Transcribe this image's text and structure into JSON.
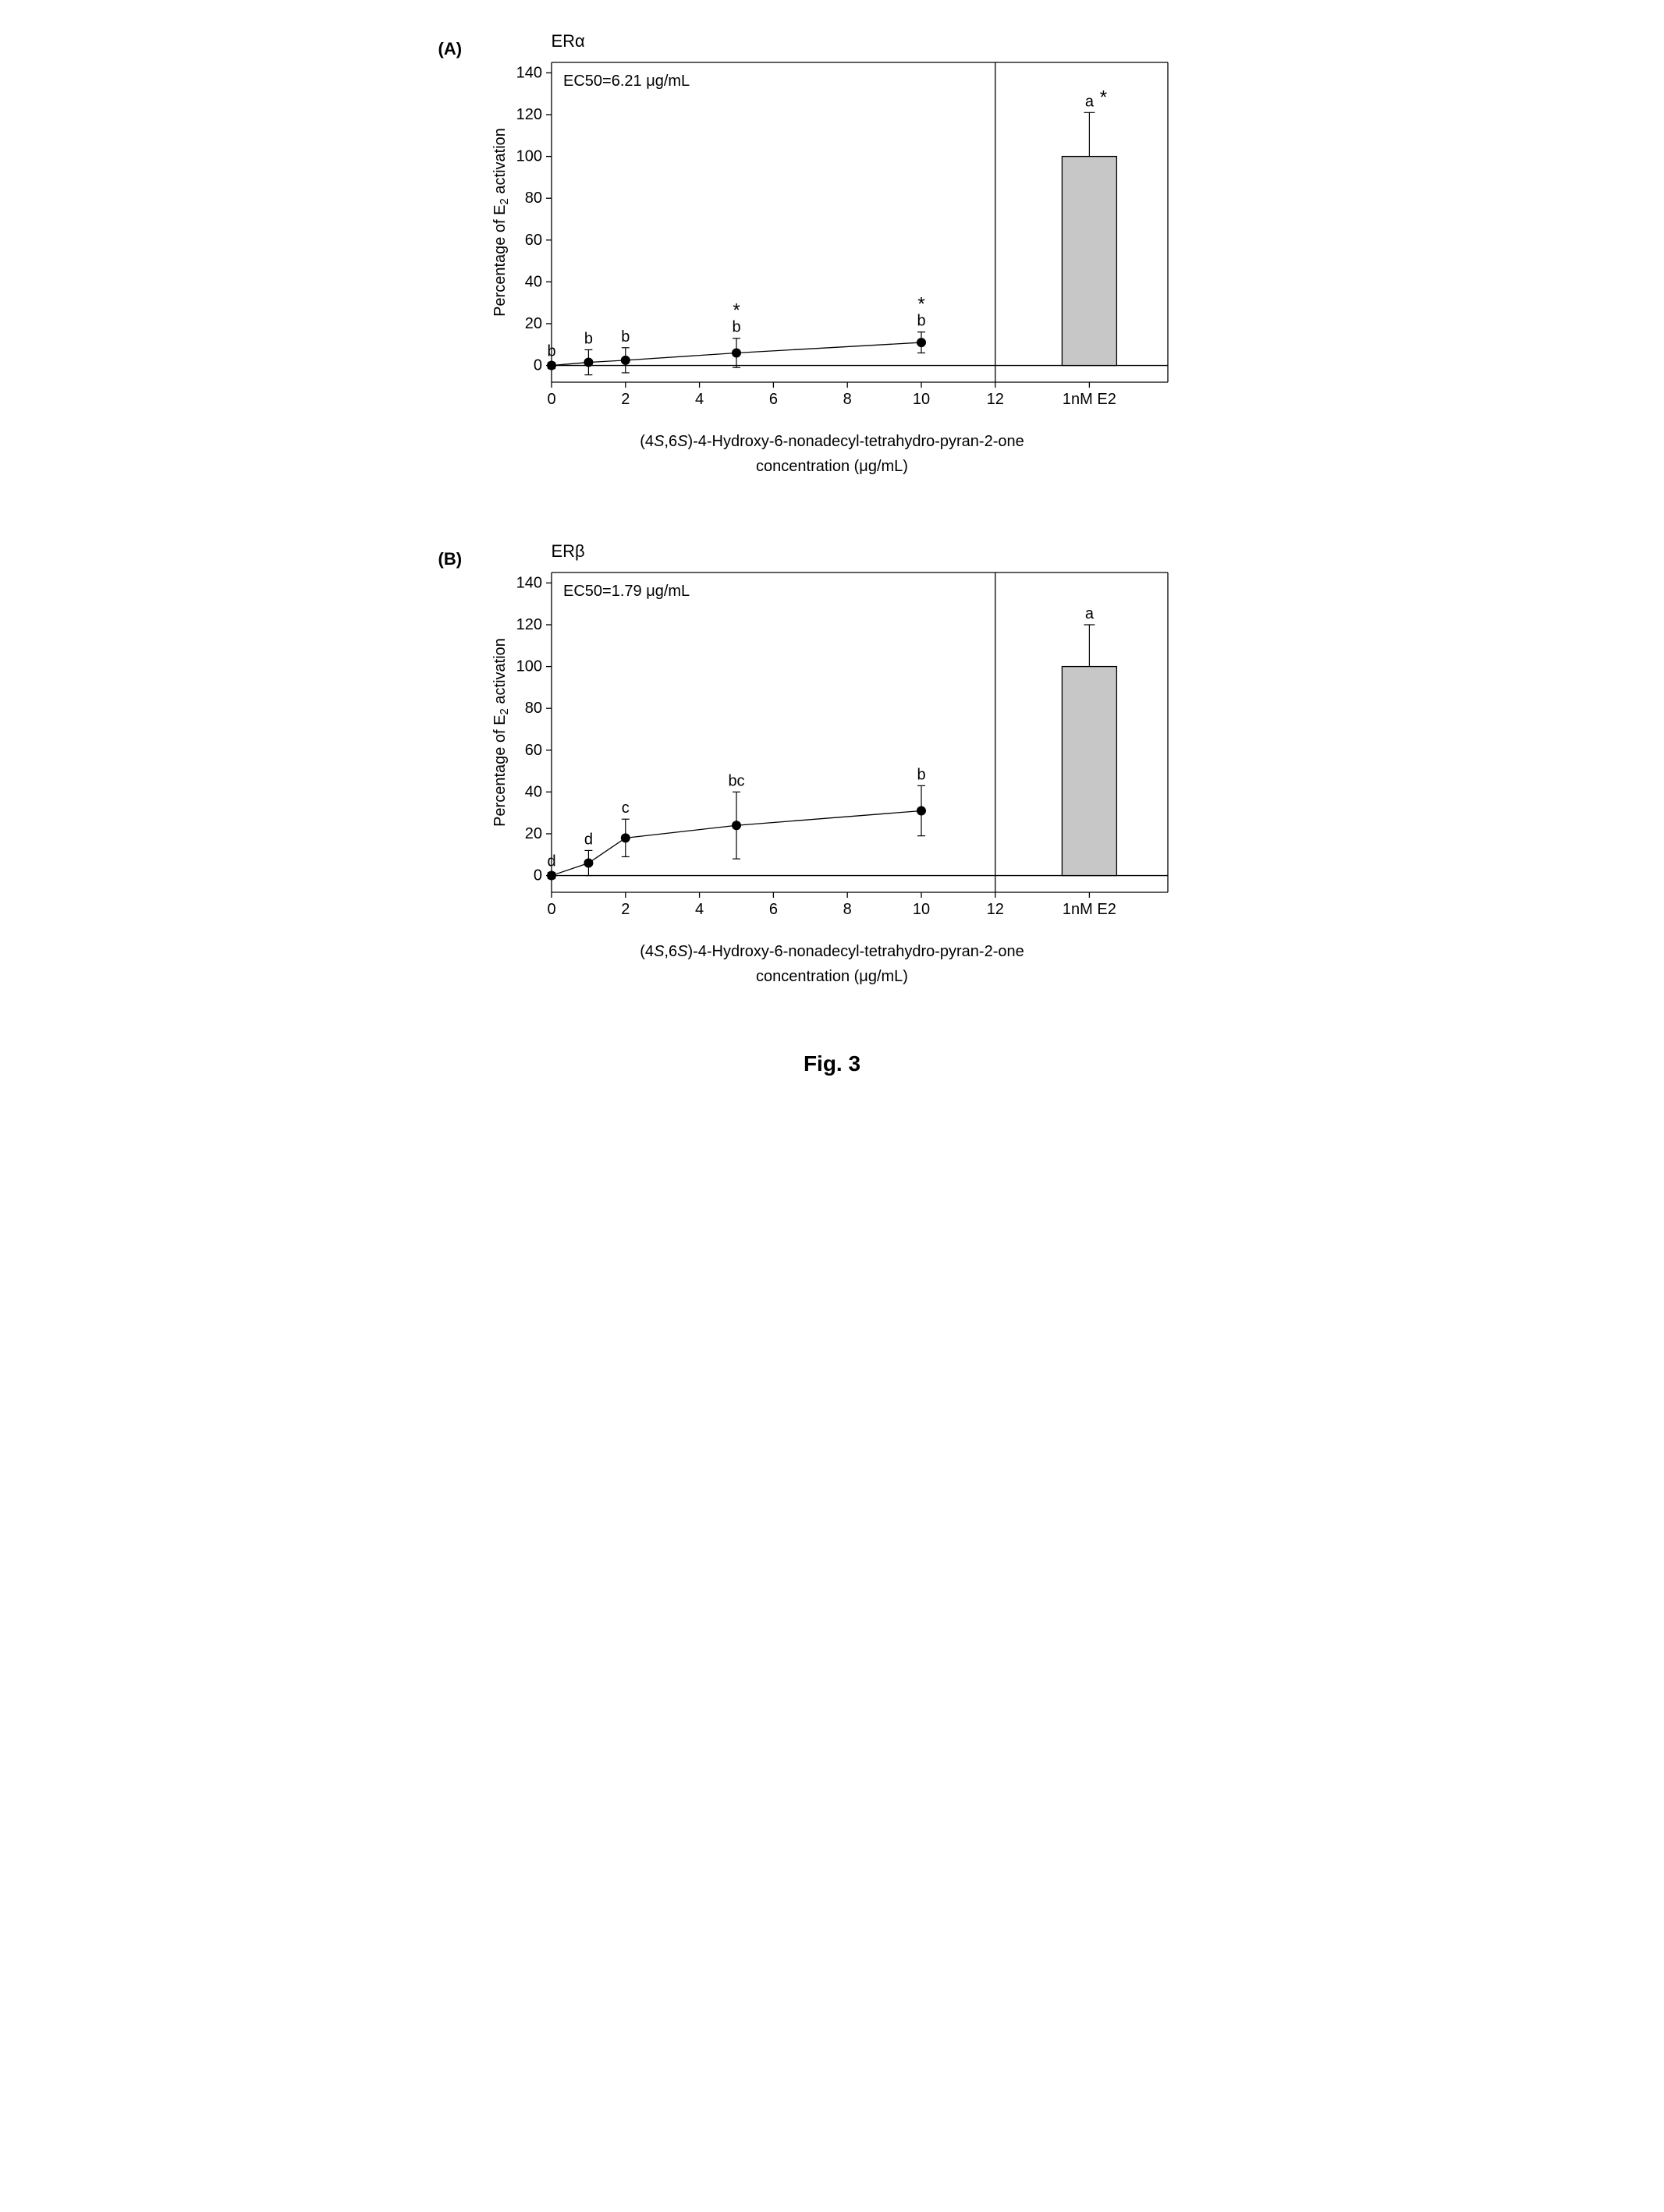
{
  "figure_caption": "Fig. 3",
  "panels": [
    {
      "panel_label": "(A)",
      "chart_title": "ERα",
      "ec50_label": "EC50=6.21 μg/mL",
      "type": "line+bar",
      "ylabel": "Percentage of E2 activation",
      "ylabel_sub": "2",
      "ylim": [
        -8,
        145
      ],
      "yticks": [
        0,
        20,
        40,
        60,
        80,
        100,
        120,
        140
      ],
      "xlabel_line1_prefix": "(4",
      "xlabel_line1_s1": "S",
      "xlabel_line1_mid": ",6",
      "xlabel_line1_s2": "S",
      "xlabel_line1_suffix": ")-4-Hydroxy-6-nonadecyl-tetrahydro-pyran-2-one",
      "xlabel_line2": "concentration (μg/mL)",
      "xticks_line": [
        0,
        2,
        4,
        6,
        8,
        10,
        12
      ],
      "line_data": {
        "x": [
          0,
          1,
          2,
          5,
          10
        ],
        "y": [
          0,
          1.5,
          2.5,
          6,
          11
        ],
        "err": [
          1.5,
          6,
          6,
          7,
          5
        ],
        "labels": [
          "b",
          "b",
          "b",
          "b",
          "b"
        ],
        "stars": [
          "",
          "",
          "",
          "*",
          "*"
        ],
        "marker_color": "#000000",
        "marker_size": 6,
        "line_color": "#000000",
        "line_width": 1.3
      },
      "bar_data": {
        "label": "1nM E2",
        "y": 100,
        "err": 21,
        "letter": "a",
        "star": "*",
        "fill": "#c7c7c7",
        "stroke": "#000000"
      },
      "background_color": "#ffffff",
      "axis_color": "#000000",
      "tick_fontsize": 20,
      "label_fontsize": 20,
      "annotation_fontsize": 20
    },
    {
      "panel_label": "(B)",
      "chart_title": "ERβ",
      "ec50_label": "EC50=1.79 μg/mL",
      "type": "line+bar",
      "ylabel": "Percentage of E2 activation",
      "ylabel_sub": "2",
      "ylim": [
        -8,
        145
      ],
      "yticks": [
        0,
        20,
        40,
        60,
        80,
        100,
        120,
        140
      ],
      "xlabel_line1_prefix": "(4",
      "xlabel_line1_s1": "S",
      "xlabel_line1_mid": ",6",
      "xlabel_line1_s2": "S",
      "xlabel_line1_suffix": ")-4-Hydroxy-6-nonadecyl-tetrahydro-pyran-2-one",
      "xlabel_line2": "concentration (μg/mL)",
      "xticks_line": [
        0,
        2,
        4,
        6,
        8,
        10,
        12
      ],
      "line_data": {
        "x": [
          0,
          1,
          2,
          5,
          10
        ],
        "y": [
          0,
          6,
          18,
          24,
          31
        ],
        "err": [
          1.5,
          6,
          9,
          16,
          12
        ],
        "labels": [
          "d",
          "d",
          "c",
          "bc",
          "b"
        ],
        "stars": [
          "",
          "",
          "",
          "",
          ""
        ],
        "marker_color": "#000000",
        "marker_size": 6,
        "line_color": "#000000",
        "line_width": 1.3
      },
      "bar_data": {
        "label": "1nM E2",
        "y": 100,
        "err": 20,
        "letter": "a",
        "star": "",
        "fill": "#c7c7c7",
        "stroke": "#000000"
      },
      "background_color": "#ffffff",
      "axis_color": "#000000",
      "tick_fontsize": 20,
      "label_fontsize": 20,
      "annotation_fontsize": 20
    }
  ]
}
